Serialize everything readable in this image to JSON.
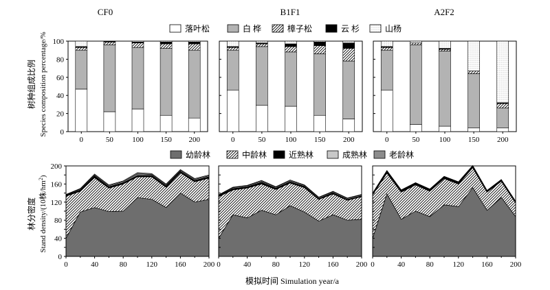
{
  "figure": {
    "panel_titles": [
      "CF0",
      "B1F1",
      "A2F2"
    ],
    "top_legend": [
      {
        "label": "落叶松",
        "fill": "#ffffff",
        "pattern": "none"
      },
      {
        "label": "白 桦",
        "fill": "#b3b3b3",
        "pattern": "none"
      },
      {
        "label": "樟子松",
        "fill": "#ffffff",
        "pattern": "diagonal-hatch"
      },
      {
        "label": "云 杉",
        "fill": "#000000",
        "pattern": "none"
      },
      {
        "label": "山杨",
        "fill": "#ffffff",
        "pattern": "dots"
      }
    ],
    "bottom_legend": [
      {
        "label": "幼龄林",
        "fill": "#6e6e6e",
        "pattern": "none"
      },
      {
        "label": "中龄林",
        "fill": "#ffffff",
        "pattern": "diagonal-hatch"
      },
      {
        "label": "近熟林",
        "fill": "#000000",
        "pattern": "none"
      },
      {
        "label": "成熟林",
        "fill": "#c8c8c8",
        "pattern": "none"
      },
      {
        "label": "老龄林",
        "fill": "#8c8c8c",
        "pattern": "none"
      }
    ],
    "top_ylabel_cn": "树种组成比例",
    "top_ylabel_en": "Species composition percentage/%",
    "bottom_ylabel_cn": "林分密度",
    "bottom_ylabel_en_pre": "Stand density/(10株/hm",
    "bottom_ylabel_en_sup": "2",
    "bottom_ylabel_en_post": ")",
    "xlabel": "模拟时间 Simulation year/a"
  },
  "chart_data": [
    {
      "type": "bar",
      "stacked": true,
      "panel": "CF0",
      "ylim": [
        0,
        100
      ],
      "yticks": [
        0,
        20,
        40,
        60,
        80,
        100
      ],
      "categories": [
        "0",
        "50",
        "100",
        "150",
        "200"
      ],
      "series": [
        {
          "name": "落叶松",
          "values": [
            47,
            22,
            25,
            18,
            15
          ]
        },
        {
          "name": "白 桦",
          "values": [
            43,
            74,
            68,
            74,
            75
          ]
        },
        {
          "name": "樟子松",
          "values": [
            3,
            3,
            5,
            5,
            7
          ]
        },
        {
          "name": "云 杉",
          "values": [
            1,
            1,
            1,
            2,
            2
          ]
        },
        {
          "name": "山杨",
          "values": [
            6,
            0,
            1,
            1,
            1
          ]
        }
      ]
    },
    {
      "type": "bar",
      "stacked": true,
      "panel": "B1F1",
      "ylim": [
        0,
        100
      ],
      "yticks": [
        0,
        20,
        40,
        60,
        80,
        100
      ],
      "categories": [
        "0",
        "50",
        "100",
        "150",
        "200"
      ],
      "series": [
        {
          "name": "落叶松",
          "values": [
            46,
            29,
            28,
            18,
            14
          ]
        },
        {
          "name": "白 桦",
          "values": [
            44,
            65,
            60,
            68,
            64
          ]
        },
        {
          "name": "樟子松",
          "values": [
            3,
            3,
            6,
            9,
            14
          ]
        },
        {
          "name": "云 杉",
          "values": [
            1,
            1,
            3,
            4,
            6
          ]
        },
        {
          "name": "山杨",
          "values": [
            6,
            2,
            3,
            1,
            2
          ]
        }
      ]
    },
    {
      "type": "bar",
      "stacked": true,
      "panel": "A2F2",
      "ylim": [
        0,
        100
      ],
      "yticks": [
        0,
        20,
        40,
        60,
        80,
        100
      ],
      "categories": [
        "0",
        "50",
        "100",
        "150",
        "200"
      ],
      "series": [
        {
          "name": "落叶松",
          "values": [
            46,
            8,
            6,
            4,
            4
          ]
        },
        {
          "name": "白 桦",
          "values": [
            44,
            88,
            83,
            60,
            22
          ]
        },
        {
          "name": "樟子松",
          "values": [
            3,
            2,
            2,
            3,
            5
          ]
        },
        {
          "name": "云 杉",
          "values": [
            1,
            0,
            1,
            0,
            1
          ]
        },
        {
          "name": "山杨",
          "values": [
            6,
            2,
            8,
            33,
            68
          ]
        }
      ]
    },
    {
      "type": "area",
      "stacked": true,
      "panel": "CF0",
      "ylim": [
        0,
        200
      ],
      "yticks": [
        0,
        20,
        40,
        60,
        80,
        100,
        120,
        140,
        160,
        180,
        200
      ],
      "x": [
        0,
        20,
        40,
        60,
        80,
        100,
        120,
        140,
        160,
        180,
        200
      ],
      "xticks": [
        0,
        40,
        80,
        120,
        160,
        200
      ],
      "series": [
        {
          "name": "幼龄林",
          "values": [
            40,
            98,
            108,
            99,
            100,
            130,
            126,
            108,
            140,
            120,
            126
          ]
        },
        {
          "name": "中龄林",
          "values": [
            93,
            46,
            66,
            52,
            60,
            46,
            50,
            45,
            45,
            45,
            47
          ]
        },
        {
          "name": "近熟林",
          "values": [
            2,
            3,
            4,
            3,
            3,
            3,
            3,
            3,
            3,
            3,
            3
          ]
        },
        {
          "name": "成熟林",
          "values": [
            1,
            2,
            2,
            2,
            2,
            3,
            2,
            2,
            2,
            2,
            2
          ]
        },
        {
          "name": "老龄林",
          "values": [
            1,
            1,
            2,
            2,
            2,
            3,
            2,
            2,
            2,
            2,
            2
          ]
        }
      ]
    },
    {
      "type": "area",
      "stacked": true,
      "panel": "B1F1",
      "ylim": [
        0,
        200
      ],
      "yticks": [
        0,
        20,
        40,
        60,
        80,
        100,
        120,
        140,
        160,
        180,
        200
      ],
      "x": [
        0,
        20,
        40,
        60,
        80,
        100,
        120,
        140,
        160,
        180,
        200
      ],
      "xticks": [
        0,
        40,
        80,
        120,
        160,
        200
      ],
      "series": [
        {
          "name": "幼龄林",
          "values": [
            40,
            92,
            85,
            102,
            92,
            112,
            98,
            78,
            92,
            80,
            82
          ]
        },
        {
          "name": "中龄林",
          "values": [
            92,
            55,
            66,
            58,
            56,
            50,
            54,
            48,
            46,
            44,
            50
          ]
        },
        {
          "name": "近熟林",
          "values": [
            2,
            3,
            3,
            4,
            3,
            3,
            3,
            2,
            3,
            2,
            2
          ]
        },
        {
          "name": "成熟林",
          "values": [
            1,
            2,
            2,
            2,
            2,
            2,
            2,
            2,
            2,
            2,
            2
          ]
        },
        {
          "name": "老龄林",
          "values": [
            1,
            1,
            1,
            2,
            1,
            2,
            1,
            1,
            1,
            1,
            1
          ]
        }
      ]
    },
    {
      "type": "area",
      "stacked": true,
      "panel": "A2F2",
      "ylim": [
        0,
        200
      ],
      "yticks": [
        0,
        20,
        40,
        60,
        80,
        100,
        120,
        140,
        160,
        180,
        200
      ],
      "x": [
        0,
        20,
        40,
        60,
        80,
        100,
        120,
        140,
        160,
        180,
        200
      ],
      "xticks": [
        0,
        40,
        80,
        120,
        160,
        200
      ],
      "series": [
        {
          "name": "幼龄林",
          "values": [
            40,
            138,
            82,
            100,
            88,
            114,
            110,
            152,
            102,
            130,
            88
          ]
        },
        {
          "name": "中龄林",
          "values": [
            96,
            46,
            60,
            58,
            56,
            58,
            50,
            44,
            40,
            36,
            30
          ]
        },
        {
          "name": "近熟林",
          "values": [
            2,
            4,
            3,
            3,
            3,
            3,
            3,
            3,
            2,
            2,
            2
          ]
        },
        {
          "name": "成熟林",
          "values": [
            1,
            1,
            1,
            1,
            1,
            1,
            1,
            1,
            1,
            1,
            1
          ]
        },
        {
          "name": "老龄林",
          "values": [
            1,
            1,
            1,
            1,
            1,
            1,
            1,
            1,
            1,
            1,
            1
          ]
        }
      ]
    }
  ]
}
